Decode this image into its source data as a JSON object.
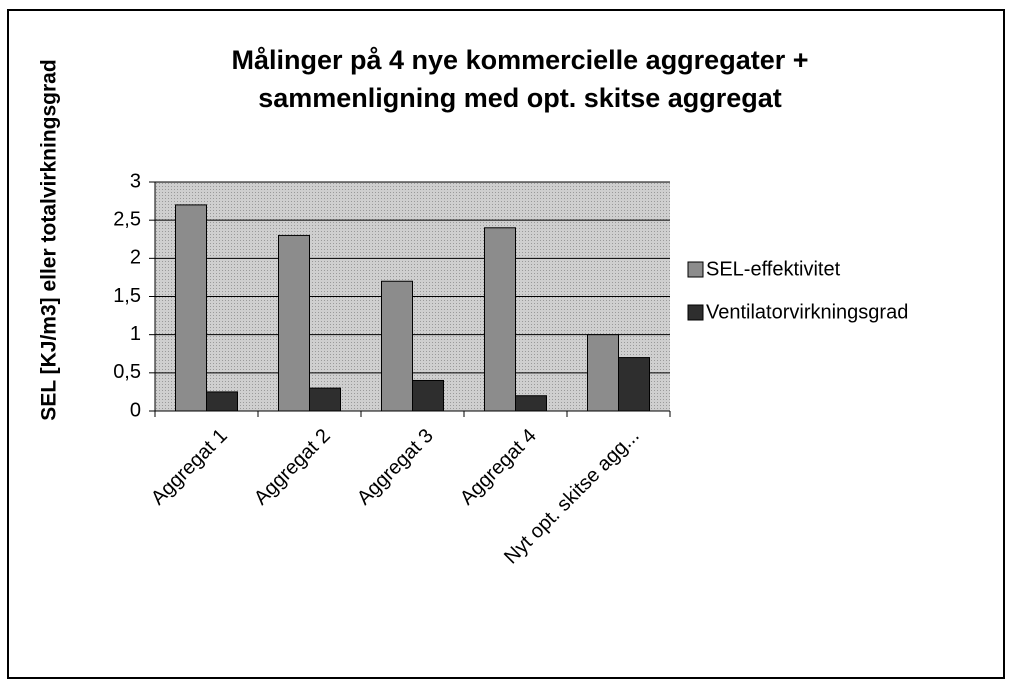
{
  "chart_data": {
    "type": "bar",
    "title": [
      "Målinger på 4 nye kommercielle aggregater +",
      "sammenligning med opt. skitse aggregat"
    ],
    "y_label": "SEL [KJ/m3] eller totalvirkningsgrad",
    "categories": [
      "Aggregat 1",
      "Aggregat 2",
      "Aggregat 3",
      "Aggregat 4",
      "Nyt opt. skitse agg..."
    ],
    "series": [
      {
        "name": "SEL-effektivitet",
        "color": "#8c8c8c",
        "values": [
          2.7,
          2.3,
          1.7,
          2.4,
          1.0
        ]
      },
      {
        "name": "Ventilatorvirkningsgrad",
        "color": "#2e2e2e",
        "values": [
          0.25,
          0.3,
          0.4,
          0.2,
          0.7
        ]
      }
    ],
    "ylim": [
      0,
      3
    ],
    "yticks": [
      0,
      {
        "value": 0.5,
        "label": "0,5"
      },
      1,
      {
        "value": 1.5,
        "label": "1,5"
      },
      2,
      {
        "value": 2.5,
        "label": "2,5"
      },
      3
    ],
    "grid": true,
    "legend": "right"
  }
}
